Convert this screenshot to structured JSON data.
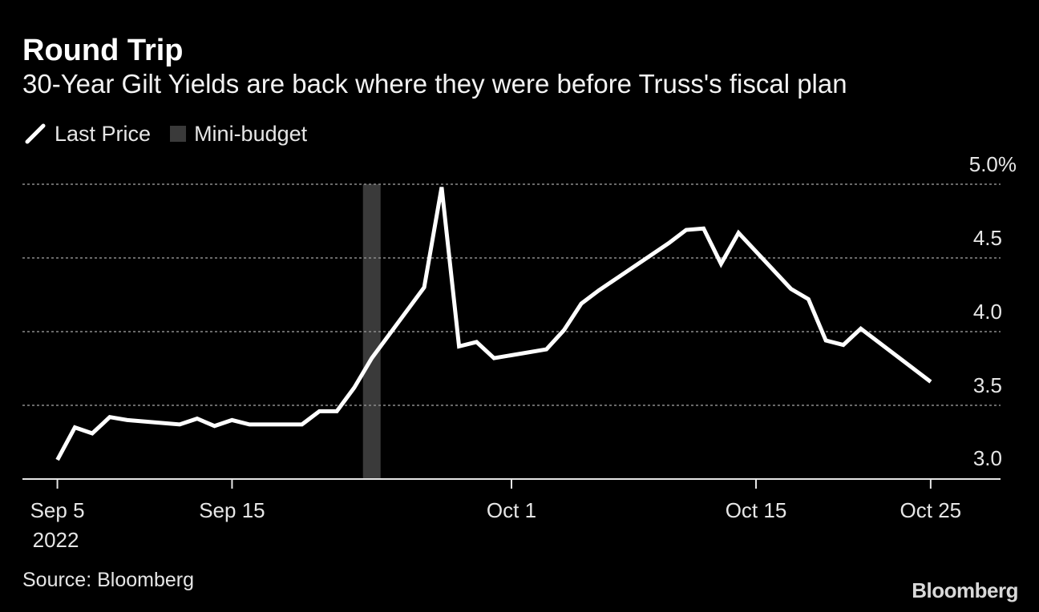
{
  "chart_data": {
    "type": "line",
    "title": "Round Trip",
    "subtitle": "30-Year Gilt Yields are back where they were before Truss's fiscal plan",
    "legend": [
      {
        "label": "Last Price",
        "color": "#ffffff",
        "kind": "line"
      },
      {
        "label": "Mini-budget",
        "color": "#3a3a3a",
        "kind": "box"
      }
    ],
    "series": [
      {
        "name": "Last Price",
        "points": [
          [
            "2022-09-05",
            3.13
          ],
          [
            "2022-09-06",
            3.35
          ],
          [
            "2022-09-07",
            3.31
          ],
          [
            "2022-09-08",
            3.42
          ],
          [
            "2022-09-09",
            3.4
          ],
          [
            "2022-09-12",
            3.37
          ],
          [
            "2022-09-13",
            3.41
          ],
          [
            "2022-09-14",
            3.36
          ],
          [
            "2022-09-15",
            3.4
          ],
          [
            "2022-09-16",
            3.37
          ],
          [
            "2022-09-19",
            3.37
          ],
          [
            "2022-09-20",
            3.46
          ],
          [
            "2022-09-21",
            3.46
          ],
          [
            "2022-09-22",
            3.62
          ],
          [
            "2022-09-23",
            3.82
          ],
          [
            "2022-09-26",
            4.3
          ],
          [
            "2022-09-27",
            4.98
          ],
          [
            "2022-09-28",
            3.9
          ],
          [
            "2022-09-29",
            3.93
          ],
          [
            "2022-09-30",
            3.82
          ],
          [
            "2022-10-03",
            3.88
          ],
          [
            "2022-10-04",
            4.01
          ],
          [
            "2022-10-05",
            4.19
          ],
          [
            "2022-10-06",
            4.28
          ],
          [
            "2022-10-07",
            4.36
          ],
          [
            "2022-10-10",
            4.6
          ],
          [
            "2022-10-11",
            4.69
          ],
          [
            "2022-10-12",
            4.7
          ],
          [
            "2022-10-13",
            4.46
          ],
          [
            "2022-10-14",
            4.67
          ],
          [
            "2022-10-17",
            4.29
          ],
          [
            "2022-10-18",
            4.22
          ],
          [
            "2022-10-19",
            3.94
          ],
          [
            "2022-10-20",
            3.91
          ],
          [
            "2022-10-21",
            4.02
          ],
          [
            "2022-10-24",
            3.75
          ],
          [
            "2022-10-25",
            3.66
          ]
        ]
      }
    ],
    "highlight": {
      "label": "Mini-budget",
      "date": "2022-09-23"
    },
    "x_ticks": [
      {
        "date": "2022-09-05",
        "label": "Sep 5",
        "sublabel": "2022"
      },
      {
        "date": "2022-09-15",
        "label": "Sep 15",
        "sublabel": ""
      },
      {
        "date": "2022-10-01",
        "label": "Oct 1",
        "sublabel": ""
      },
      {
        "date": "2022-10-15",
        "label": "Oct 15",
        "sublabel": ""
      },
      {
        "date": "2022-10-25",
        "label": "Oct 25",
        "sublabel": ""
      }
    ],
    "y_ticks": [
      {
        "value": 3.0,
        "label": "3.0"
      },
      {
        "value": 3.5,
        "label": "3.5"
      },
      {
        "value": 4.0,
        "label": "4.0"
      },
      {
        "value": 4.5,
        "label": "4.5"
      },
      {
        "value": 5.0,
        "label": "5.0%"
      }
    ],
    "xlim": [
      "2022-09-03",
      "2022-10-29"
    ],
    "ylim": [
      3.0,
      5.0
    ],
    "grid": true,
    "line_color": "#ffffff",
    "grid_color": "#8c8c8c",
    "highlight_color": "#3a3a3a"
  },
  "footer": {
    "source": "Source: Bloomberg",
    "logo": "Bloomberg"
  }
}
